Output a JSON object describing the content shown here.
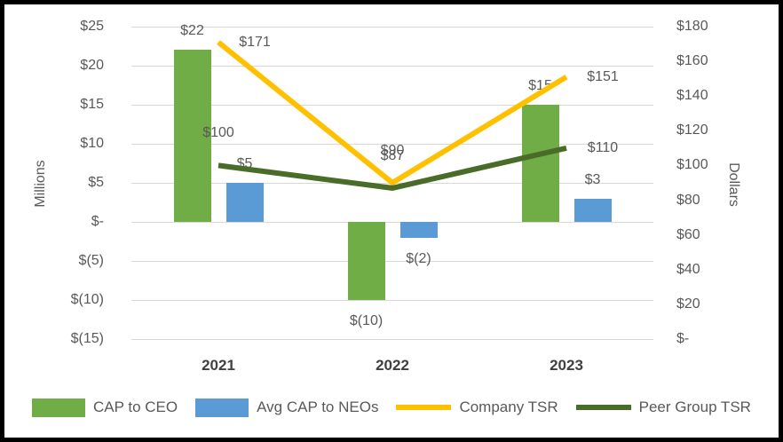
{
  "chart_data": {
    "type": "combo-bar-line",
    "categories": [
      "2021",
      "2022",
      "2023"
    ],
    "series": [
      {
        "name": "CAP to CEO",
        "type": "bar",
        "axis": "left",
        "color": "#70AD47",
        "values": [
          22,
          -10,
          15
        ],
        "point_labels": [
          "$22",
          "$(10)",
          "$15"
        ]
      },
      {
        "name": "Avg CAP to NEOs",
        "type": "bar",
        "axis": "left",
        "color": "#5B9BD5",
        "values": [
          5,
          -2,
          3
        ],
        "point_labels": [
          "$5",
          "$(2)",
          "$3"
        ]
      },
      {
        "name": "Company TSR",
        "type": "line",
        "axis": "right",
        "color": "#FFC000",
        "values": [
          171,
          90,
          151
        ],
        "point_labels": [
          "$171",
          "$90",
          "$151"
        ],
        "label_placement": [
          "right",
          "above",
          "right"
        ]
      },
      {
        "name": "Peer Group TSR",
        "type": "line",
        "axis": "right",
        "color": "#4A6C29",
        "values": [
          100,
          87,
          110
        ],
        "point_labels": [
          "$100",
          "$87",
          "$110"
        ],
        "label_placement": [
          "above",
          "above",
          "right"
        ]
      }
    ],
    "left_axis": {
      "title": "Millions",
      "min": -15,
      "max": 25,
      "step": 5,
      "tick_labels": [
        "$25",
        "$20",
        "$15",
        "$10",
        "$5",
        "$-",
        "$(5)",
        "$(10)",
        "$(15)"
      ]
    },
    "right_axis": {
      "title": "Dollars",
      "min": 0,
      "max": 180,
      "step": 20,
      "tick_labels": [
        "$180",
        "$160",
        "$140",
        "$120",
        "$100",
        "$80",
        "$60",
        "$40",
        "$20",
        "$-"
      ]
    },
    "grid": true,
    "legend_position": "bottom",
    "colors": {
      "gridline": "#D9D9D9",
      "tick_text": "#595959",
      "data_label_text": "#595959",
      "year_text": "#404040",
      "frame_border": "#000000"
    }
  }
}
